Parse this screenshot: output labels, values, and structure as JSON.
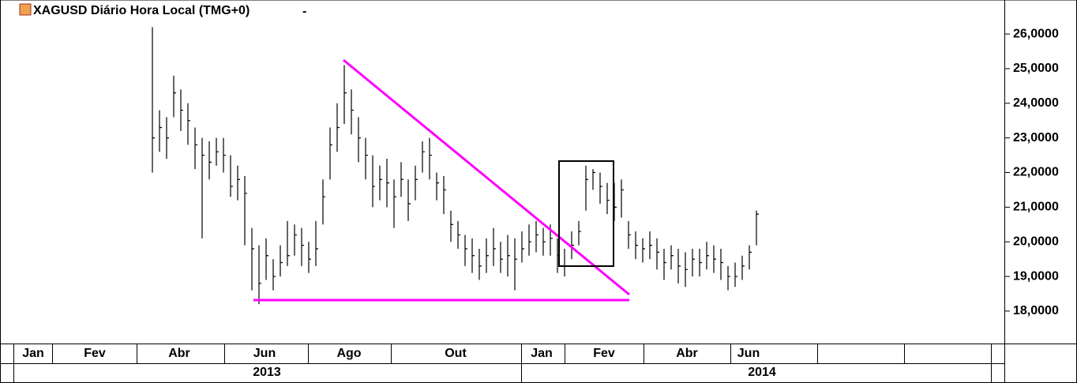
{
  "chart_data": {
    "type": "ohlc",
    "title": "XAGUSD Diário Hora Local (TMG+0)",
    "menu": "-",
    "color": "#000000",
    "high": [
      26.2,
      23.8,
      23.6,
      24.8,
      24.4,
      24.0,
      23.3,
      23.0,
      22.9,
      23.0,
      23.0,
      22.5,
      22.2,
      21.9,
      20.4,
      19.9,
      20.1,
      19.5,
      19.9,
      20.6,
      20.5,
      20.4,
      20.0,
      20.6,
      21.8,
      23.3,
      24.0,
      25.1,
      24.4,
      23.6,
      23.0,
      22.5,
      22.2,
      22.4,
      21.8,
      22.3,
      21.8,
      22.2,
      22.9,
      23.0,
      22.0,
      21.9,
      20.9,
      20.6,
      20.2,
      20.1,
      19.8,
      20.1,
      20.4,
      20.0,
      20.2,
      20.1,
      20.3,
      20.5,
      20.6,
      20.4,
      20.5,
      20.1,
      19.8,
      20.3,
      20.6,
      22.2,
      22.1,
      22.0,
      21.7,
      21.7,
      21.8,
      20.6,
      20.3,
      20.1,
      20.3,
      20.1,
      19.8,
      19.9,
      19.8,
      19.7,
      19.8,
      19.8,
      20.0,
      19.9,
      19.8,
      19.3,
      19.4,
      19.6,
      19.9,
      20.9
    ],
    "low": [
      22.0,
      22.6,
      22.4,
      23.6,
      23.2,
      22.8,
      22.1,
      20.1,
      21.8,
      22.2,
      22.0,
      21.3,
      21.2,
      19.9,
      18.6,
      18.2,
      18.9,
      18.6,
      19.0,
      19.3,
      19.6,
      19.3,
      19.1,
      19.3,
      20.5,
      21.8,
      22.6,
      23.4,
      23.1,
      22.3,
      21.8,
      21.0,
      21.2,
      21.0,
      20.4,
      21.3,
      20.6,
      21.2,
      22.0,
      21.8,
      21.2,
      20.8,
      20.0,
      19.8,
      19.3,
      19.1,
      18.9,
      19.1,
      19.3,
      19.1,
      19.0,
      18.6,
      19.4,
      19.6,
      19.7,
      19.6,
      19.6,
      19.1,
      19.0,
      19.5,
      19.9,
      20.9,
      21.5,
      21.1,
      20.8,
      20.6,
      20.7,
      19.8,
      19.5,
      19.4,
      19.5,
      19.2,
      18.9,
      19.2,
      18.8,
      18.7,
      19.0,
      19.0,
      19.2,
      19.1,
      18.9,
      18.6,
      18.7,
      18.9,
      19.2,
      19.9
    ],
    "close": [
      23.0,
      23.3,
      23.0,
      24.3,
      23.8,
      23.5,
      22.8,
      22.5,
      22.3,
      22.6,
      22.5,
      21.6,
      21.8,
      21.4,
      19.8,
      18.8,
      19.6,
      19.0,
      19.4,
      19.6,
      20.2,
      19.9,
      19.5,
      19.8,
      21.3,
      22.8,
      23.3,
      24.3,
      23.8,
      23.0,
      22.5,
      21.6,
      21.8,
      21.7,
      21.3,
      21.8,
      21.1,
      21.8,
      22.6,
      22.5,
      21.7,
      21.5,
      20.5,
      20.2,
      19.8,
      19.6,
      19.3,
      19.6,
      19.8,
      19.5,
      19.6,
      19.5,
      19.8,
      20.0,
      20.2,
      20.0,
      20.1,
      19.6,
      19.3,
      19.9,
      20.3,
      21.8,
      22.0,
      21.6,
      21.2,
      21.0,
      21.5,
      20.2,
      19.9,
      19.8,
      19.9,
      19.7,
      19.4,
      19.6,
      19.3,
      19.2,
      19.5,
      19.4,
      19.6,
      19.5,
      19.4,
      19.0,
      19.0,
      19.3,
      19.7,
      20.8
    ],
    "ylim": [
      17.2,
      26.8
    ],
    "yticks": [
      {
        "value": 18,
        "label": "18,0000"
      },
      {
        "value": 19,
        "label": "19,0000"
      },
      {
        "value": 20,
        "label": "20,0000"
      },
      {
        "value": 21,
        "label": "21,0000"
      },
      {
        "value": 22,
        "label": "22,0000"
      },
      {
        "value": 23,
        "label": "23,0000"
      },
      {
        "value": 24,
        "label": "24,0000"
      },
      {
        "value": 25,
        "label": "25,0000"
      },
      {
        "value": 26,
        "label": "26,0000"
      }
    ],
    "months": [
      "Jan",
      "Fev",
      "Abr",
      "Jun",
      "Ago",
      "Out",
      "Jan",
      "Fev",
      "Abr",
      "Jun"
    ],
    "years": [
      "2013",
      "2014"
    ]
  }
}
